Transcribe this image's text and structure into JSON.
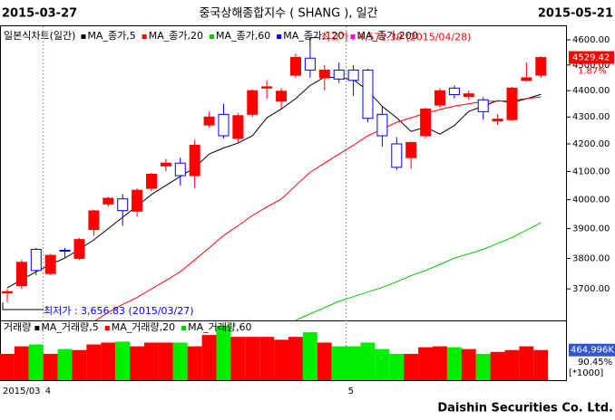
{
  "chart_data": [
    {
      "type": "candlestick",
      "title": "중국상해종합지수 ( SHANG ), 일간",
      "start_label": "2015-03-27",
      "end_label": "2015-05-21",
      "legend_title": "일본식차트(일간)",
      "categories": [
        "2015/03",
        null,
        null,
        "4",
        null,
        null,
        null,
        null,
        null,
        null,
        null,
        null,
        null,
        null,
        null,
        null,
        null,
        null,
        null,
        null,
        null,
        null,
        null,
        null,
        "5",
        null,
        null,
        null,
        null,
        null,
        null,
        null,
        null,
        null,
        null,
        null,
        null,
        null
      ],
      "open": [
        3687,
        3710,
        3830,
        3750,
        3827,
        3800,
        3897,
        3985,
        4003,
        3960,
        4040,
        4120,
        4130,
        4085,
        4270,
        4310,
        4220,
        4310,
        4410,
        4360,
        4460,
        4527,
        4450,
        4480,
        4480,
        4480,
        4310,
        4200,
        4150,
        4230,
        4345,
        4410,
        4378,
        4365,
        4285,
        4290,
        4440,
        4460
      ],
      "high": [
        3700,
        3795,
        3835,
        3815,
        3835,
        3868,
        3965,
        4010,
        4020,
        4040,
        4095,
        4145,
        4150,
        4215,
        4320,
        4350,
        4315,
        4405,
        4440,
        4410,
        4545,
        4572.39,
        4500,
        4510,
        4500,
        4485,
        4340,
        4225,
        4210,
        4335,
        4410,
        4420,
        4400,
        4375,
        4310,
        4415,
        4510,
        4535
      ],
      "low": [
        3656.83,
        3700,
        3745,
        3745,
        3800,
        3795,
        3875,
        3975,
        3910,
        3941,
        4030,
        4100,
        4050,
        4040,
        4260,
        4220,
        4205,
        4300,
        4370,
        4330,
        4450,
        4450,
        4400,
        4430,
        4380,
        4280,
        4190,
        4105,
        4110,
        4220,
        4335,
        4370,
        4365,
        4290,
        4270,
        4285,
        4435,
        4450
      ],
      "close": [
        3691,
        3787,
        3760,
        3810,
        3825,
        3863,
        3961,
        4005,
        3962,
        4033,
        4090,
        4130,
        4085,
        4195,
        4300,
        4230,
        4305,
        4400,
        4415,
        4398,
        4530,
        4480,
        4480,
        4445,
        4440,
        4295,
        4230,
        4115,
        4205,
        4330,
        4400,
        4385,
        4388,
        4320,
        4292,
        4410,
        4450,
        4529.42
      ],
      "up_color": "#ff0000",
      "down_color": "#0000ff",
      "series": [
        {
          "name": "MA_종가,5",
          "color": "#000000",
          "values": [
            3703,
            3730,
            3756,
            3780,
            3801,
            3830,
            3862,
            3900,
            3939,
            3978,
            4018,
            4050,
            4082,
            4114,
            4163,
            4185,
            4203,
            4230,
            4297,
            4330,
            4370,
            4420,
            4453,
            4450,
            4443,
            4400,
            4340,
            4297,
            4246,
            4262,
            4236,
            4268,
            4321,
            4341,
            4362,
            4355,
            4369,
            4386
          ]
        },
        {
          "name": "MA_종가,20",
          "color": "#ff0000",
          "values": [
            null,
            null,
            null,
            null,
            null,
            null,
            3595,
            3625,
            3650,
            3672,
            3700,
            3727,
            3756,
            3795,
            3835,
            3877,
            3910,
            3945,
            3975,
            4002,
            4050,
            4097,
            4130,
            4163,
            4195,
            4230,
            4255,
            4280,
            4297,
            4314,
            4328,
            4341,
            4350,
            4359,
            4360,
            4362,
            4370,
            4376
          ]
        },
        {
          "name": "MA_종가,60",
          "color": "#00cc00",
          "values": [
            null,
            null,
            null,
            null,
            null,
            null,
            null,
            null,
            null,
            null,
            null,
            null,
            null,
            null,
            null,
            null,
            null,
            null,
            null,
            null,
            3600,
            3620,
            3640,
            3660,
            3675,
            3690,
            3705,
            3723,
            3743,
            3760,
            3780,
            3801,
            3815,
            3830,
            3850,
            3870,
            3895,
            3920
          ]
        },
        {
          "name": "MA_종가,120",
          "color": "#0000ff",
          "values": [
            null,
            null,
            null,
            null,
            null,
            null,
            null,
            null,
            null,
            null,
            null,
            null,
            null,
            null,
            null,
            null,
            null,
            null,
            null,
            null,
            null,
            null,
            null,
            null,
            null,
            null,
            null,
            null,
            null,
            null,
            null,
            null,
            null,
            null,
            null,
            null,
            null,
            null
          ]
        },
        {
          "name": "MA_종가,200",
          "color": "#ff00ff",
          "values": [
            null,
            null,
            null,
            null,
            null,
            null,
            null,
            null,
            null,
            null,
            null,
            null,
            null,
            null,
            null,
            null,
            null,
            null,
            null,
            null,
            null,
            null,
            null,
            null,
            null,
            null,
            null,
            null,
            null,
            null,
            null,
            null,
            null,
            null,
            null,
            null,
            null,
            null
          ]
        }
      ],
      "log_scale": true,
      "ylim": [
        3605,
        4633
      ],
      "yticks": [
        {
          "value": 3700,
          "label": "3700.00"
        },
        {
          "value": 3800,
          "label": "3800.00"
        },
        {
          "value": 3900,
          "label": "3900.00"
        },
        {
          "value": 4000,
          "label": "4000.00"
        },
        {
          "value": 4100,
          "label": "4100.00"
        },
        {
          "value": 4200,
          "label": "4200.00"
        },
        {
          "value": 4300,
          "label": "4300.00"
        },
        {
          "value": 4400,
          "label": "4400.00"
        },
        {
          "value": 4500,
          "label": "4500.00"
        },
        {
          "value": 4600,
          "label": "4600.00"
        }
      ],
      "change_label": "1.87%",
      "annotations": [
        {
          "text": "최고가 : 4,572.39 (2015/04/28)",
          "index": 21,
          "value": 4572.39,
          "color": "#ff0000"
        },
        {
          "text": "최저가 : 3,656.83 (2015/03/27)",
          "index": 0,
          "value": 3656.83,
          "color": "#0000ff"
        }
      ]
    },
    {
      "type": "bar",
      "legend_title": "거래량",
      "legend": [
        {
          "name": "MA_거래량,5",
          "color": "#000000"
        },
        {
          "name": "MA_거래량,20",
          "color": "#ff0000"
        },
        {
          "name": "MA_거래량,60",
          "color": "#00cc00"
        }
      ],
      "values": [
        406000,
        522000,
        551000,
        406000,
        480000,
        465000,
        551000,
        580000,
        595000,
        522000,
        580000,
        580000,
        580000,
        522000,
        697000,
        842000,
        668000,
        668000,
        668000,
        624000,
        668000,
        740000,
        580000,
        522000,
        522000,
        580000,
        480000,
        406000,
        406000,
        508000,
        522000,
        508000,
        480000,
        406000,
        436000,
        465000,
        522000,
        464996
      ],
      "value_labels": [
        null,
        null,
        null,
        null,
        null,
        null,
        null,
        null,
        null,
        null,
        null,
        null,
        null,
        null,
        null,
        null,
        null,
        null,
        null,
        null,
        null,
        null,
        null,
        null,
        null,
        null,
        null,
        null,
        null,
        null,
        null,
        null,
        null,
        null,
        null,
        null,
        null,
        "464,996K"
      ],
      "up_color": "#ff0000",
      "down_color": "#00ee00",
      "ylim": [
        0,
        880000
      ],
      "ratio_label": "90.45%",
      "unit_label": "[*1000]"
    }
  ],
  "footer": "Daishin Securities Co. Ltd."
}
